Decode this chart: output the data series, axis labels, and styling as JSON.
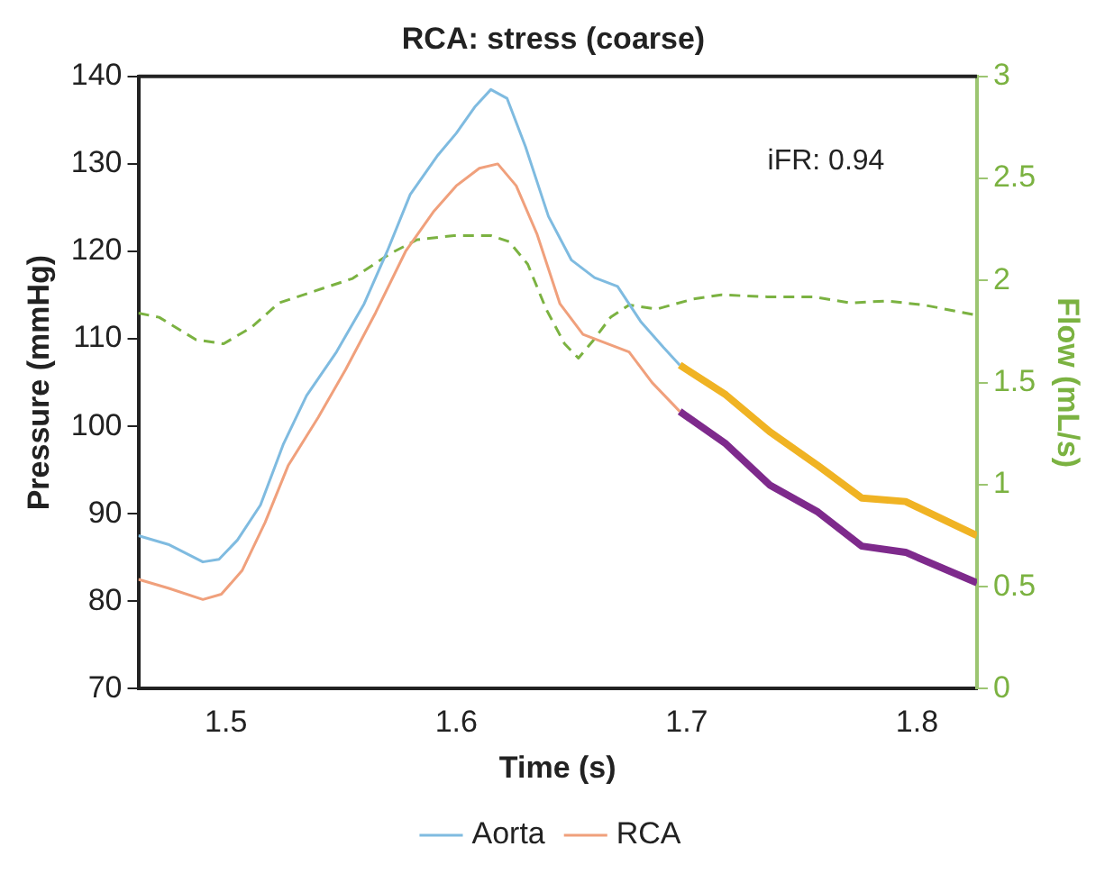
{
  "chart_data": {
    "type": "line",
    "title": "RCA: stress (coarse)",
    "xlabel": "Time (s)",
    "ylabel": "Pressure (mmHg)",
    "y2label": "Flow (mL/s)",
    "xlim": [
      1.462,
      1.826
    ],
    "xticks": [
      1.5,
      1.6,
      1.7,
      1.8
    ],
    "ylim": [
      70,
      140
    ],
    "yticks": [
      70,
      80,
      90,
      100,
      110,
      120,
      130,
      140
    ],
    "y2lim": [
      0,
      3
    ],
    "y2ticks": [
      0,
      0.5,
      1,
      1.5,
      2,
      2.5,
      3
    ],
    "grid": false,
    "legend": "bottom",
    "marker": "none",
    "annotations": [
      "iFR: 0.94"
    ],
    "series": [
      {
        "name": "Aorta",
        "color": "#7fbbe0",
        "x": [
          1.462,
          1.475,
          1.49,
          1.497,
          1.505,
          1.515,
          1.525,
          1.535,
          1.548,
          1.56,
          1.57,
          1.58,
          1.592,
          1.6,
          1.608,
          1.615,
          1.622,
          1.63,
          1.64,
          1.65,
          1.66,
          1.67,
          1.68,
          1.69,
          1.697
        ],
        "values": [
          87.5,
          86.5,
          84.5,
          84.8,
          87,
          91,
          98,
          103.5,
          108.5,
          114,
          120,
          126.5,
          131,
          133.5,
          136.5,
          138.5,
          137.5,
          132,
          124,
          119,
          117,
          116,
          112,
          109,
          107
        ]
      },
      {
        "name": "RCA",
        "color": "#f0a07c",
        "x": [
          1.462,
          1.475,
          1.49,
          1.498,
          1.507,
          1.517,
          1.527,
          1.54,
          1.552,
          1.565,
          1.578,
          1.59,
          1.6,
          1.61,
          1.618,
          1.626,
          1.635,
          1.645,
          1.655,
          1.665,
          1.675,
          1.685,
          1.697
        ],
        "values": [
          82.5,
          81.5,
          80.2,
          80.8,
          83.5,
          89,
          95.5,
          101,
          106.5,
          113,
          120,
          124.5,
          127.5,
          129.5,
          130,
          127.5,
          122,
          114,
          110.5,
          109.5,
          108.5,
          105,
          101.7
        ]
      },
      {
        "color": "#f0b323",
        "x": [
          1.697,
          1.717,
          1.736,
          1.757,
          1.776,
          1.795,
          1.826
        ],
        "values": [
          107,
          103.6,
          99.4,
          95.5,
          91.8,
          91.4,
          87.5
        ]
      },
      {
        "color": "#7e2a8c",
        "x": [
          1.697,
          1.717,
          1.736,
          1.757,
          1.776,
          1.795,
          1.826
        ],
        "values": [
          101.7,
          98,
          93.3,
          90.2,
          86.3,
          85.6,
          82.1
        ]
      },
      {
        "color": "#7bb241",
        "axis": "y2",
        "line_style": "dashed",
        "x": [
          1.462,
          1.471,
          1.487,
          1.499,
          1.511,
          1.523,
          1.539,
          1.555,
          1.571,
          1.583,
          1.599,
          1.615,
          1.623,
          1.631,
          1.639,
          1.647,
          1.653,
          1.659,
          1.667,
          1.675,
          1.687,
          1.703,
          1.715,
          1.735,
          1.755,
          1.771,
          1.787,
          1.803,
          1.826
        ],
        "values": [
          1.84,
          1.82,
          1.71,
          1.69,
          1.77,
          1.89,
          1.95,
          2.01,
          2.13,
          2.2,
          2.22,
          2.22,
          2.19,
          2.08,
          1.86,
          1.69,
          1.62,
          1.7,
          1.82,
          1.88,
          1.86,
          1.91,
          1.93,
          1.92,
          1.92,
          1.89,
          1.9,
          1.88,
          1.83
        ]
      }
    ]
  }
}
